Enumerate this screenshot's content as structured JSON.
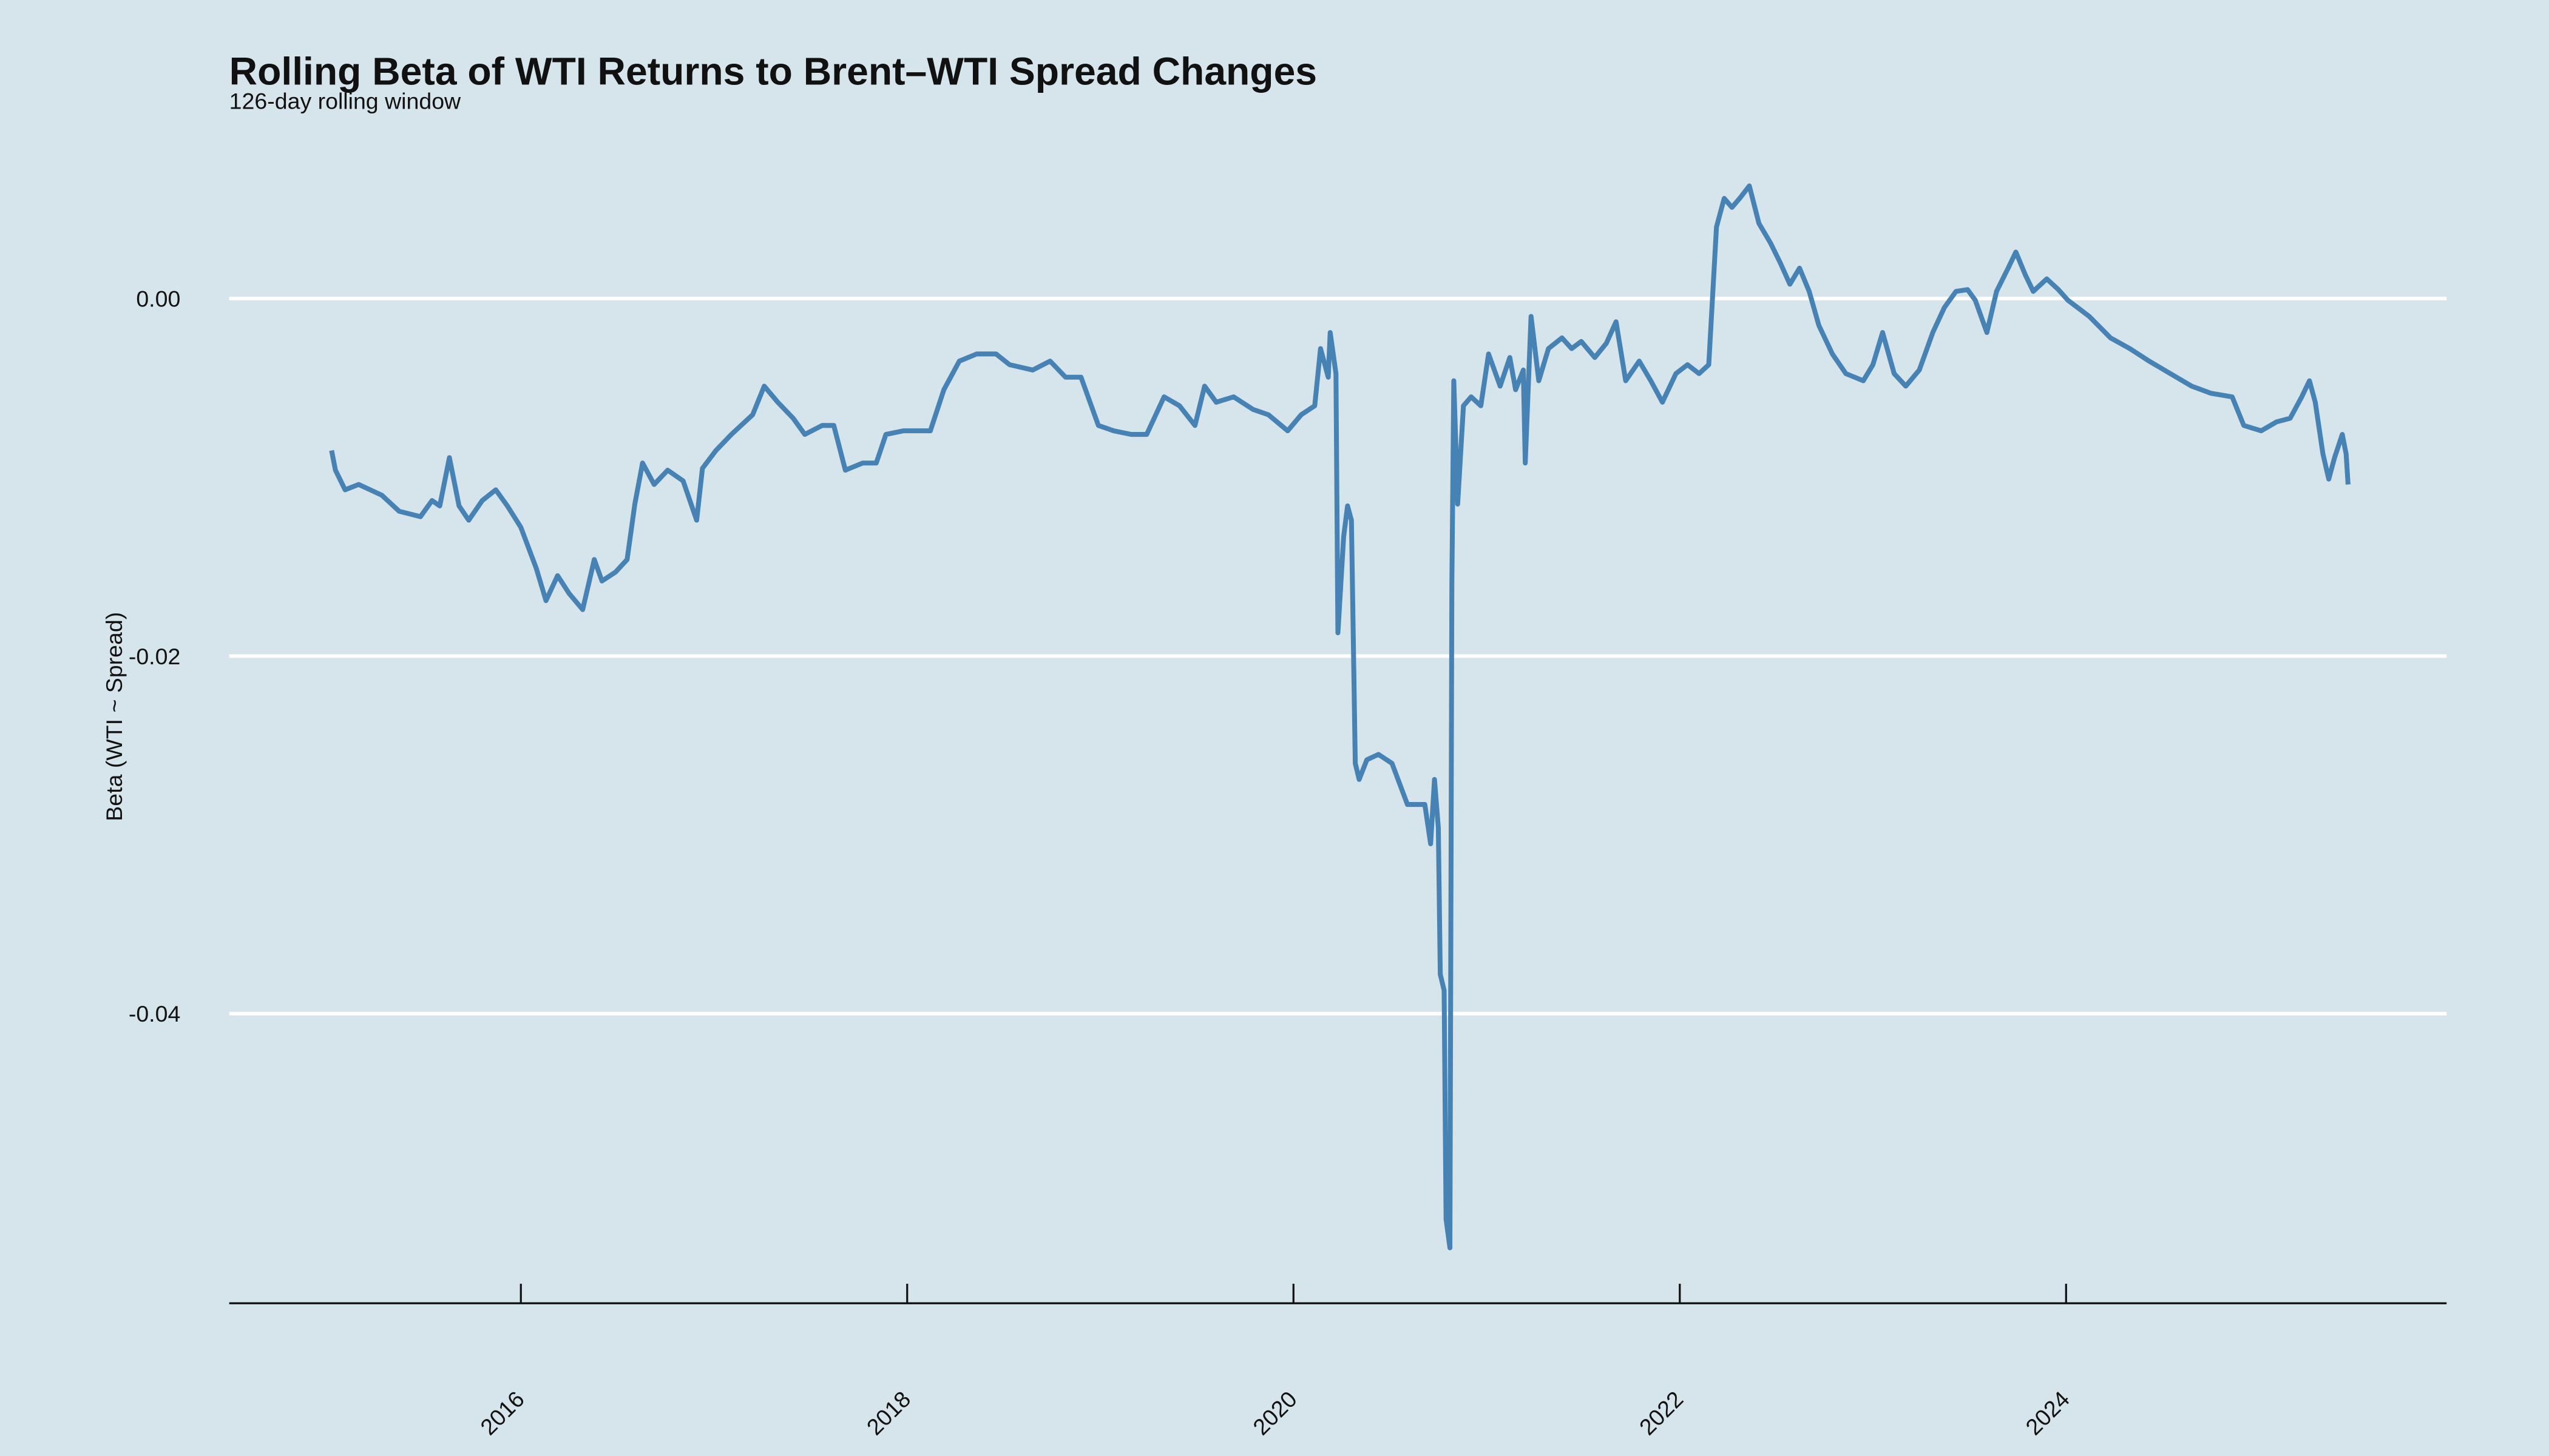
{
  "chart_data": {
    "type": "line",
    "title": "Rolling Beta of WTI Returns to Brent–WTI Spread Changes",
    "subtitle": "126-day rolling window",
    "y_label": "Beta (WTI ~ Spread)",
    "color": "#4682b4",
    "grid": true,
    "xlim": [
      2014.49,
      2025.97
    ],
    "xticks": [
      2016,
      2018,
      2020,
      2022,
      2024
    ],
    "ylim": [
      -0.0562,
      0.0087
    ],
    "yticks": [
      {
        "value": 0,
        "label": "0.00"
      },
      {
        "value": -0.02,
        "label": "-0.02"
      },
      {
        "value": -0.04,
        "label": "-0.04"
      }
    ],
    "x": [
      2015.02,
      2015.04,
      2015.09,
      2015.16,
      2015.28,
      2015.37,
      2015.48,
      2015.54,
      2015.58,
      2015.63,
      2015.68,
      2015.73,
      2015.8,
      2015.87,
      2015.93,
      2016.0,
      2016.08,
      2016.13,
      2016.19,
      2016.25,
      2016.32,
      2016.38,
      2016.42,
      2016.49,
      2016.55,
      2016.59,
      2016.63,
      2016.69,
      2016.76,
      2016.84,
      2016.91,
      2016.94,
      2017.01,
      2017.09,
      2017.14,
      2017.2,
      2017.26,
      2017.33,
      2017.41,
      2017.47,
      2017.56,
      2017.62,
      2017.68,
      2017.77,
      2017.84,
      2017.89,
      2017.98,
      2018.06,
      2018.12,
      2018.19,
      2018.27,
      2018.36,
      2018.46,
      2018.53,
      2018.65,
      2018.74,
      2018.82,
      2018.9,
      2018.99,
      2019.07,
      2019.16,
      2019.24,
      2019.33,
      2019.41,
      2019.49,
      2019.54,
      2019.6,
      2019.69,
      2019.79,
      2019.87,
      2019.97,
      2020.04,
      2020.11,
      2020.14,
      2020.18,
      2020.19,
      2020.22,
      2020.23,
      2020.26,
      2020.28,
      2020.3,
      2020.32,
      2020.34,
      2020.38,
      2020.44,
      2020.51,
      2020.59,
      2020.65,
      2020.68,
      2020.71,
      2020.73,
      2020.75,
      2020.76,
      2020.78,
      2020.79,
      2020.81,
      2020.82,
      2020.83,
      2020.85,
      2020.88,
      2020.92,
      2020.97,
      2021.01,
      2021.07,
      2021.12,
      2021.15,
      2021.19,
      2021.2,
      2021.23,
      2021.27,
      2021.32,
      2021.39,
      2021.44,
      2021.49,
      2021.56,
      2021.62,
      2021.67,
      2021.72,
      2021.79,
      2021.85,
      2021.91,
      2021.98,
      2022.04,
      2022.1,
      2022.15,
      2022.19,
      2022.23,
      2022.27,
      2022.31,
      2022.36,
      2022.41,
      2022.47,
      2022.52,
      2022.57,
      2022.62,
      2022.67,
      2022.72,
      2022.79,
      2022.86,
      2022.95,
      2023.0,
      2023.05,
      2023.11,
      2023.17,
      2023.24,
      2023.31,
      2023.37,
      2023.43,
      2023.49,
      2023.53,
      2023.59,
      2023.64,
      2023.7,
      2023.74,
      2023.79,
      2023.83,
      2023.9,
      2023.96,
      2024.01,
      2024.12,
      2024.23,
      2024.33,
      2024.43,
      2024.54,
      2024.65,
      2024.75,
      2024.86,
      2024.92,
      2025.01,
      2025.09,
      2025.16,
      2025.22,
      2025.26,
      2025.29,
      2025.33,
      2025.36,
      2025.39,
      2025.43,
      2025.45,
      2025.46
    ],
    "values": [
      -0.0085,
      -0.0096,
      -0.0107,
      -0.0104,
      -0.011,
      -0.0119,
      -0.0122,
      -0.0113,
      -0.0116,
      -0.0089,
      -0.0116,
      -0.0124,
      -0.0113,
      -0.0107,
      -0.0116,
      -0.0128,
      -0.0151,
      -0.0169,
      -0.0155,
      -0.0165,
      -0.0174,
      -0.0146,
      -0.0158,
      -0.0153,
      -0.0146,
      -0.0115,
      -0.0092,
      -0.0104,
      -0.0096,
      -0.0102,
      -0.0124,
      -0.0095,
      -0.0085,
      -0.0076,
      -0.0071,
      -0.0065,
      -0.0049,
      -0.0058,
      -0.0067,
      -0.0076,
      -0.0071,
      -0.0071,
      -0.0096,
      -0.0092,
      -0.0092,
      -0.0076,
      -0.0074,
      -0.0074,
      -0.0074,
      -0.0051,
      -0.0035,
      -0.0031,
      -0.0031,
      -0.0037,
      -0.004,
      -0.0035,
      -0.0044,
      -0.0044,
      -0.0071,
      -0.0074,
      -0.0076,
      -0.0076,
      -0.0055,
      -0.006,
      -0.0071,
      -0.0049,
      -0.0058,
      -0.0055,
      -0.0062,
      -0.0065,
      -0.0074,
      -0.0065,
      -0.006,
      -0.0028,
      -0.0044,
      -0.0019,
      -0.0042,
      -0.0187,
      -0.0133,
      -0.0116,
      -0.0124,
      -0.026,
      -0.0269,
      -0.0258,
      -0.0255,
      -0.026,
      -0.0283,
      -0.0283,
      -0.0283,
      -0.0305,
      -0.0269,
      -0.0296,
      -0.0378,
      -0.0387,
      -0.0515,
      -0.0531,
      -0.016,
      -0.0046,
      -0.0115,
      -0.006,
      -0.0055,
      -0.006,
      -0.0031,
      -0.0049,
      -0.0033,
      -0.0051,
      -0.004,
      -0.0092,
      -0.001,
      -0.0046,
      -0.0028,
      -0.0022,
      -0.0028,
      -0.0024,
      -0.0033,
      -0.0025,
      -0.0013,
      -0.0046,
      -0.0035,
      -0.0046,
      -0.0058,
      -0.0042,
      -0.0037,
      -0.0042,
      -0.0037,
      0.004,
      0.0056,
      0.0051,
      0.0056,
      0.0063,
      0.0042,
      0.0031,
      0.002,
      0.0008,
      0.0017,
      0.0004,
      -0.0015,
      -0.0031,
      -0.0042,
      -0.0046,
      -0.0037,
      -0.0019,
      -0.0042,
      -0.0049,
      -0.004,
      -0.0019,
      -0.0005,
      0.0004,
      0.0005,
      -0.0001,
      -0.0019,
      0.0004,
      0.0017,
      0.0026,
      0.0013,
      0.0004,
      0.0011,
      0.0005,
      -0.0001,
      -0.001,
      -0.0022,
      -0.0028,
      -0.0035,
      -0.0042,
      -0.0049,
      -0.0053,
      -0.0055,
      -0.0071,
      -0.0074,
      -0.0069,
      -0.0067,
      -0.0055,
      -0.0046,
      -0.0058,
      -0.0087,
      -0.0101,
      -0.0089,
      -0.0076,
      -0.0087,
      -0.0104
    ]
  }
}
